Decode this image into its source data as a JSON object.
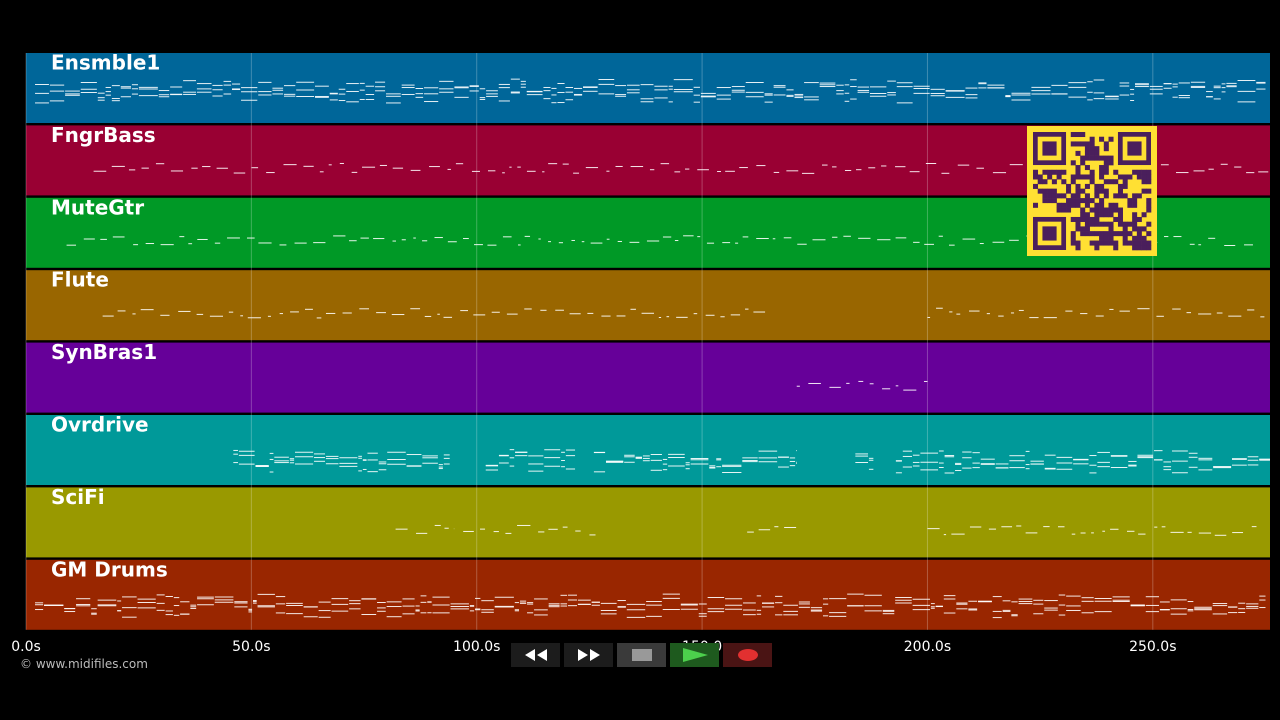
{
  "window": {
    "background": "#000000"
  },
  "timeline": {
    "x_min": 0,
    "x_max": 276,
    "ticks": [
      {
        "value": 0,
        "label": "0.0s"
      },
      {
        "value": 50,
        "label": "50.0s"
      },
      {
        "value": 100,
        "label": "100.0s"
      },
      {
        "value": 150,
        "label": "150.0"
      },
      {
        "value": 200,
        "label": "200.0s"
      },
      {
        "value": 250,
        "label": "250.0s"
      }
    ]
  },
  "tracks": [
    {
      "name": "Ensmble1",
      "color": "#006699",
      "activity": [
        [
          2,
          275
        ]
      ]
    },
    {
      "name": "FngrBass",
      "color": "#990033",
      "activity": [
        [
          15,
          276
        ]
      ]
    },
    {
      "name": "MuteGtr",
      "color": "#009926",
      "activity": [
        [
          9,
          273
        ]
      ]
    },
    {
      "name": "Flute",
      "color": "#996600",
      "activity": [
        [
          17,
          165
        ],
        [
          200,
          275
        ]
      ]
    },
    {
      "name": "SynBras1",
      "color": "#660099",
      "activity": [
        [
          171,
          200
        ]
      ]
    },
    {
      "name": "Ovrdrive",
      "color": "#009999",
      "activity": [
        [
          46,
          94
        ],
        [
          102,
          122
        ],
        [
          126,
          171
        ],
        [
          184,
          188
        ],
        [
          193,
          276
        ]
      ]
    },
    {
      "name": "SciFi",
      "color": "#999900",
      "activity": [
        [
          82,
          95
        ],
        [
          97,
          127
        ],
        [
          160,
          171
        ],
        [
          200,
          273
        ]
      ]
    },
    {
      "name": "GM Drums",
      "color": "#992600",
      "activity": [
        [
          2,
          275
        ]
      ]
    }
  ],
  "copyright": "© www.midifiles.com",
  "transport": {
    "rewind_icon": "rewind-icon",
    "forward_icon": "fast-forward-icon",
    "stop_icon": "stop-icon",
    "play_icon": "play-icon",
    "record_icon": "record-icon"
  },
  "qr_code": {
    "foreground": "#4a1f5c",
    "background": "#ffe033"
  }
}
